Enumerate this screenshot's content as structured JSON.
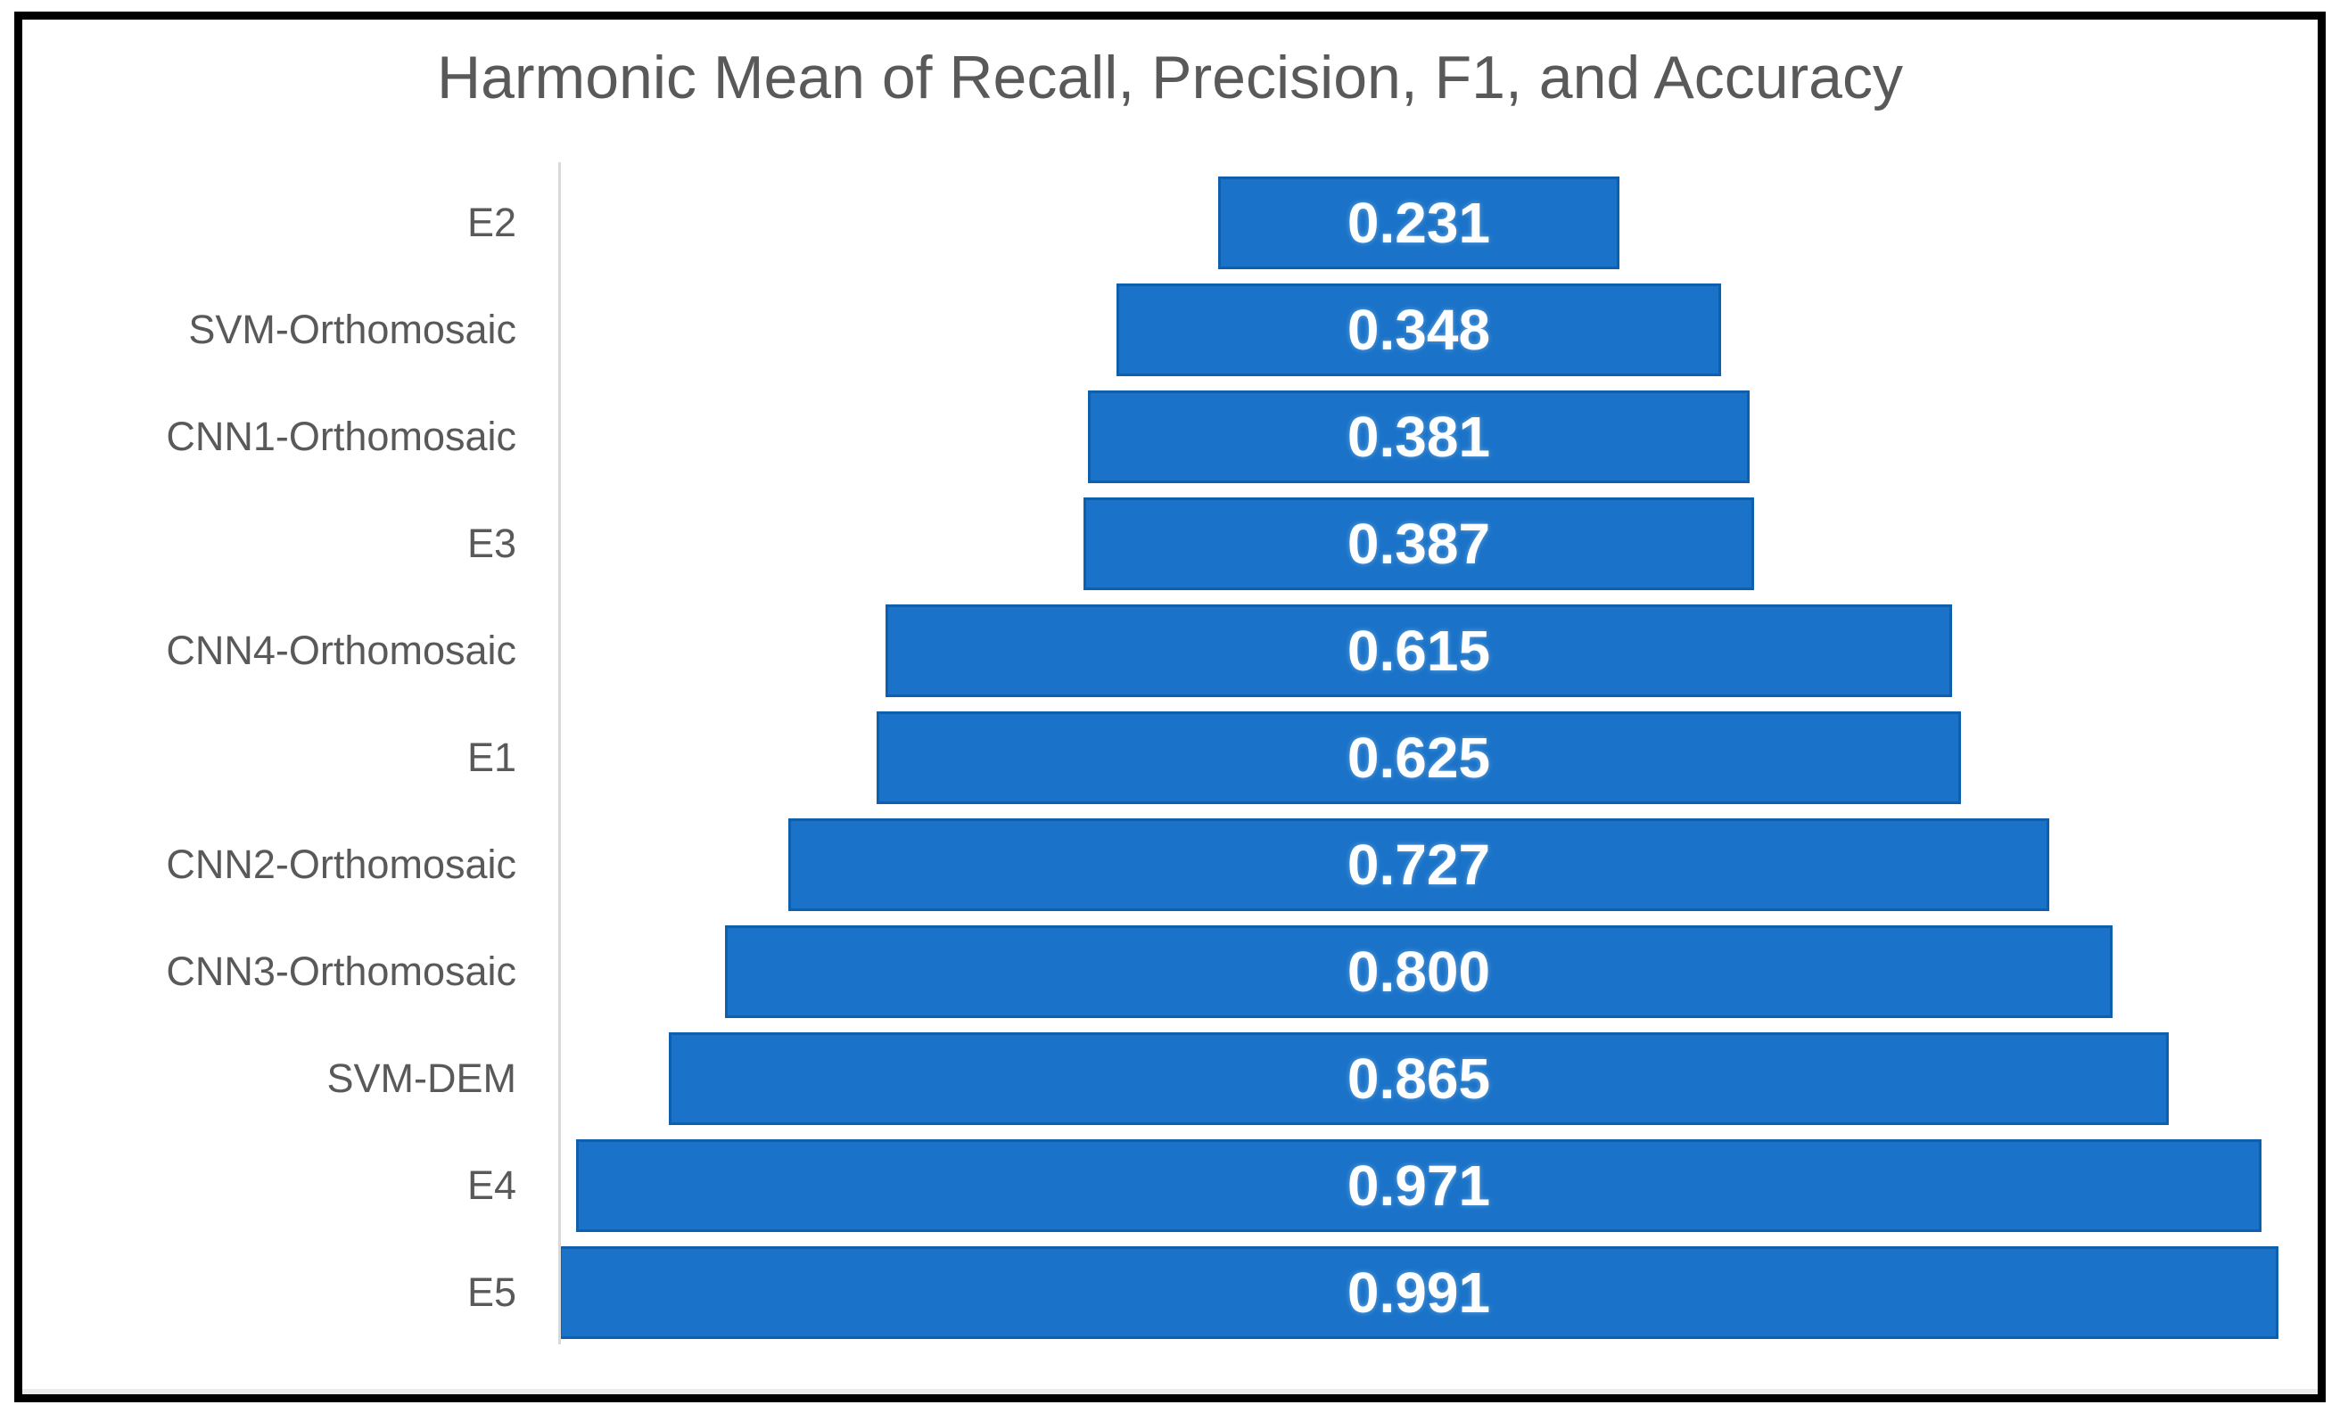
{
  "chart_data": {
    "type": "bar",
    "subtype": "horizontal-centered-funnel",
    "title": "Harmonic Mean of Recall, Precision, F1, and Accuracy",
    "categories": [
      "E2",
      "SVM-Orthomosaic",
      "CNN1-Orthomosaic",
      "E3",
      "CNN4-Orthomosaic",
      "E1",
      "CNN2-Orthomosaic",
      "CNN3-Orthomosaic",
      "SVM-DEM",
      "E4",
      "E5"
    ],
    "values": [
      0.231,
      0.348,
      0.381,
      0.387,
      0.615,
      0.625,
      0.727,
      0.8,
      0.865,
      0.971,
      0.991
    ],
    "value_labels": [
      "0.231",
      "0.348",
      "0.381",
      "0.387",
      "0.615",
      "0.625",
      "0.727",
      "0.800",
      "0.865",
      "0.971",
      "0.991"
    ],
    "xlabel": "",
    "ylabel": "",
    "xlim": [
      0,
      1
    ],
    "grid": false,
    "legend": false,
    "bars_centered": true,
    "colors": {
      "bar_fill": "#1A73C8",
      "bar_edge": "#0E60AE",
      "value_label": "#FFFFFF",
      "category_label": "#595959",
      "title": "#595959",
      "axis_line": "#D9D9D9",
      "frame_border": "#000000",
      "background": "#FFFFFF"
    }
  }
}
